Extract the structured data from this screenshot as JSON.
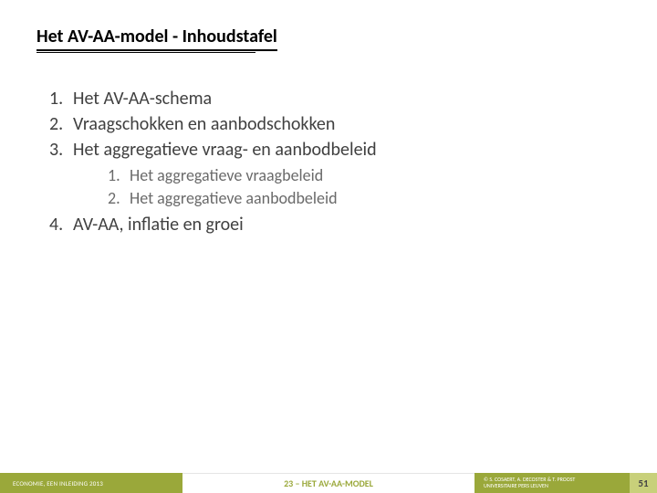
{
  "title": "Het AV-AA-model - Inhoudstafel",
  "items": [
    {
      "text": "Het AV-AA-schema"
    },
    {
      "text": "Vraagschokken en aanbodschokken"
    },
    {
      "text": "Het aggregatieve vraag- en aanbodbeleid",
      "subitems": [
        {
          "text": "Het aggregatieve vraagbeleid"
        },
        {
          "text": "Het aggregatieve aanbodbeleid"
        }
      ]
    },
    {
      "text": "AV-AA, inflatie en groei"
    }
  ],
  "footer": {
    "left": "ECONOMIE, EEN INLEIDING 2013",
    "center": "23 – HET AV-AA-MODEL",
    "right_line1": "© S. COSAERT, A. DECOSTER & T. PROOST",
    "right_line2": "UNIVERSITAIRE PERS LEUVEN",
    "page": "51"
  },
  "colors": {
    "accent": "#9aa83a",
    "accent_light": "#c8d07a",
    "text_main": "#404040",
    "text_sub": "#6a6a6a"
  }
}
